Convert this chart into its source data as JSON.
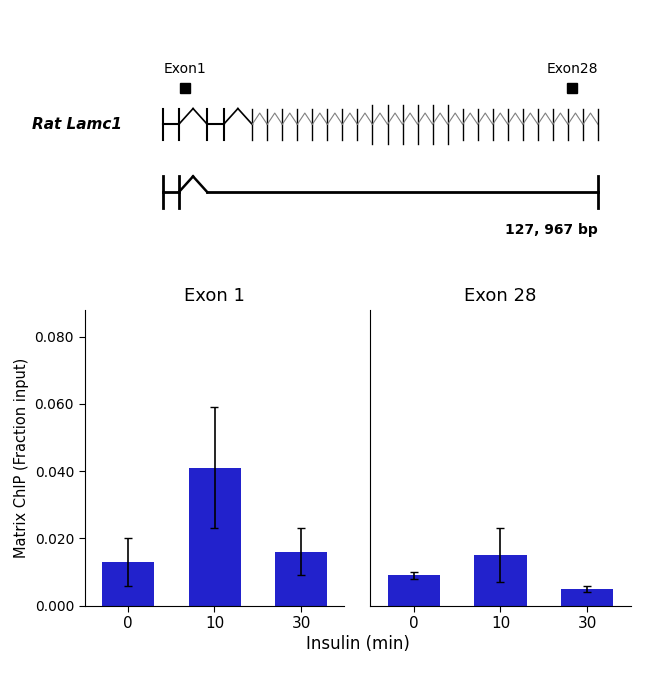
{
  "bar_color": "#2222CC",
  "exon1_values": [
    0.013,
    0.041,
    0.016
  ],
  "exon1_errors": [
    0.007,
    0.018,
    0.007
  ],
  "exon28_values": [
    0.009,
    0.015,
    0.005
  ],
  "exon28_errors": [
    0.001,
    0.008,
    0.001
  ],
  "x_labels": [
    "0",
    "10",
    "30"
  ],
  "xlabel": "Insulin (min)",
  "ylabel": "Matrix ChIP (Fraction input)",
  "ylim": [
    0,
    0.088
  ],
  "yticks": [
    0.0,
    0.02,
    0.04,
    0.06,
    0.08
  ],
  "exon1_title": "Exon 1",
  "exon28_title": "Exon 28",
  "gene_label": "Rat Lamc1",
  "exon1_label": "Exon1",
  "exon28_label": "Exon28",
  "bp_label": "127, 967 bp",
  "background_color": "#ffffff"
}
